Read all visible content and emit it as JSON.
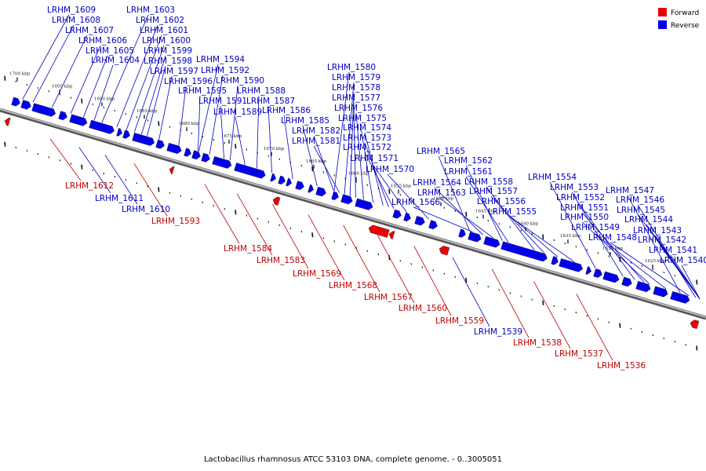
{
  "caption": "Lactobacillus rhamnosus ATCC 53103 DNA, complete genome. - 0..3005051",
  "legend": [
    {
      "label": "Forward",
      "color": "#ee0000"
    },
    {
      "label": "Reverse",
      "color": "#0000ee"
    }
  ],
  "colors": {
    "forward": "#ee0000",
    "reverse": "#0000ee",
    "backbone": "#888888"
  },
  "ticks": [
    "1700 kbp",
    "1695 kbp",
    "1690 kbp",
    "1685 kbp",
    "1680 kbp",
    "1675 kbp",
    "1670 kbp",
    "1665 kbp",
    "1660 kbp",
    "1655 kbp",
    "1650 kbp",
    "1645 kbp",
    "1640 kbp",
    "1635 kbp",
    "1630 kbp",
    "1625 kbp"
  ],
  "genes": [
    {
      "label": "LRHM_1609",
      "strand": "reverse"
    },
    {
      "label": "LRHM_1608",
      "strand": "reverse"
    },
    {
      "label": "LRHM_1607",
      "strand": "reverse"
    },
    {
      "label": "LRHM_1606",
      "strand": "reverse"
    },
    {
      "label": "LRHM_1605",
      "strand": "reverse"
    },
    {
      "label": "LRHM_1604",
      "strand": "reverse"
    },
    {
      "label": "LRHM_1603",
      "strand": "reverse"
    },
    {
      "label": "LRHM_1602",
      "strand": "reverse"
    },
    {
      "label": "LRHM_1601",
      "strand": "reverse"
    },
    {
      "label": "LRHM_1600",
      "strand": "reverse"
    },
    {
      "label": "LRHM_1599",
      "strand": "reverse"
    },
    {
      "label": "LRHM_1598",
      "strand": "reverse"
    },
    {
      "label": "LRHM_1597",
      "strand": "reverse"
    },
    {
      "label": "LRHM_1596",
      "strand": "reverse"
    },
    {
      "label": "LRHM_1595",
      "strand": "reverse"
    },
    {
      "label": "LRHM_1594",
      "strand": "reverse"
    },
    {
      "label": "LRHM_1592",
      "strand": "reverse"
    },
    {
      "label": "LRHM_1590",
      "strand": "reverse"
    },
    {
      "label": "LRHM_1591",
      "strand": "reverse"
    },
    {
      "label": "LRHM_1589",
      "strand": "reverse"
    },
    {
      "label": "LRHM_1588",
      "strand": "reverse"
    },
    {
      "label": "LRHM_1587",
      "strand": "reverse"
    },
    {
      "label": "LRHM_1586",
      "strand": "reverse"
    },
    {
      "label": "LRHM_1585",
      "strand": "reverse"
    },
    {
      "label": "LRHM_1582",
      "strand": "reverse"
    },
    {
      "label": "LRHM_1581",
      "strand": "reverse"
    },
    {
      "label": "LRHM_1580",
      "strand": "reverse"
    },
    {
      "label": "LRHM_1579",
      "strand": "reverse"
    },
    {
      "label": "LRHM_1578",
      "strand": "reverse"
    },
    {
      "label": "LRHM_1577",
      "strand": "reverse"
    },
    {
      "label": "LRHM_1576",
      "strand": "reverse"
    },
    {
      "label": "LRHM_1575",
      "strand": "reverse"
    },
    {
      "label": "LRHM_1574",
      "strand": "reverse"
    },
    {
      "label": "LRHM_1573",
      "strand": "reverse"
    },
    {
      "label": "LRHM_1572",
      "strand": "reverse"
    },
    {
      "label": "LRHM_1571",
      "strand": "reverse"
    },
    {
      "label": "LRHM_1570",
      "strand": "reverse"
    },
    {
      "label": "LRHM_1565",
      "strand": "reverse"
    },
    {
      "label": "LRHM_1562",
      "strand": "reverse"
    },
    {
      "label": "LRHM_1561",
      "strand": "reverse"
    },
    {
      "label": "LRHM_1564",
      "strand": "reverse"
    },
    {
      "label": "LRHM_1558",
      "strand": "reverse"
    },
    {
      "label": "LRHM_1563",
      "strand": "reverse"
    },
    {
      "label": "LRHM_1557",
      "strand": "reverse"
    },
    {
      "label": "LRHM_1566",
      "strand": "reverse"
    },
    {
      "label": "LRHM_1556",
      "strand": "reverse"
    },
    {
      "label": "LRHM_1555",
      "strand": "reverse"
    },
    {
      "label": "LRHM_1554",
      "strand": "reverse"
    },
    {
      "label": "LRHM_1553",
      "strand": "reverse"
    },
    {
      "label": "LRHM_1552",
      "strand": "reverse"
    },
    {
      "label": "LRHM_1551",
      "strand": "reverse"
    },
    {
      "label": "LRHM_1550",
      "strand": "reverse"
    },
    {
      "label": "LRHM_1549",
      "strand": "reverse"
    },
    {
      "label": "LRHM_1548",
      "strand": "reverse"
    },
    {
      "label": "LRHM_1547",
      "strand": "reverse"
    },
    {
      "label": "LRHM_1546",
      "strand": "reverse"
    },
    {
      "label": "LRHM_1545",
      "strand": "reverse"
    },
    {
      "label": "LRHM_1544",
      "strand": "reverse"
    },
    {
      "label": "LRHM_1543",
      "strand": "reverse"
    },
    {
      "label": "LRHM_1542",
      "strand": "reverse"
    },
    {
      "label": "LRHM_1541",
      "strand": "reverse"
    },
    {
      "label": "LRHM_1540",
      "strand": "reverse"
    },
    {
      "label": "LRHM_1612",
      "strand": "forward"
    },
    {
      "label": "LRHM_1611",
      "strand": "reverse"
    },
    {
      "label": "LRHM_1610",
      "strand": "reverse"
    },
    {
      "label": "LRHM_1593",
      "strand": "forward"
    },
    {
      "label": "LRHM_1584",
      "strand": "forward"
    },
    {
      "label": "LRHM_1583",
      "strand": "forward"
    },
    {
      "label": "LRHM_1569",
      "strand": "forward"
    },
    {
      "label": "LRHM_1568",
      "strand": "forward"
    },
    {
      "label": "LRHM_1567",
      "strand": "forward"
    },
    {
      "label": "LRHM_1560",
      "strand": "forward"
    },
    {
      "label": "LRHM_1559",
      "strand": "forward"
    },
    {
      "label": "LRHM_1539",
      "strand": "reverse"
    },
    {
      "label": "LRHM_1538",
      "strand": "forward"
    },
    {
      "label": "LRHM_1537",
      "strand": "forward"
    },
    {
      "label": "LRHM_1536",
      "strand": "forward"
    }
  ]
}
